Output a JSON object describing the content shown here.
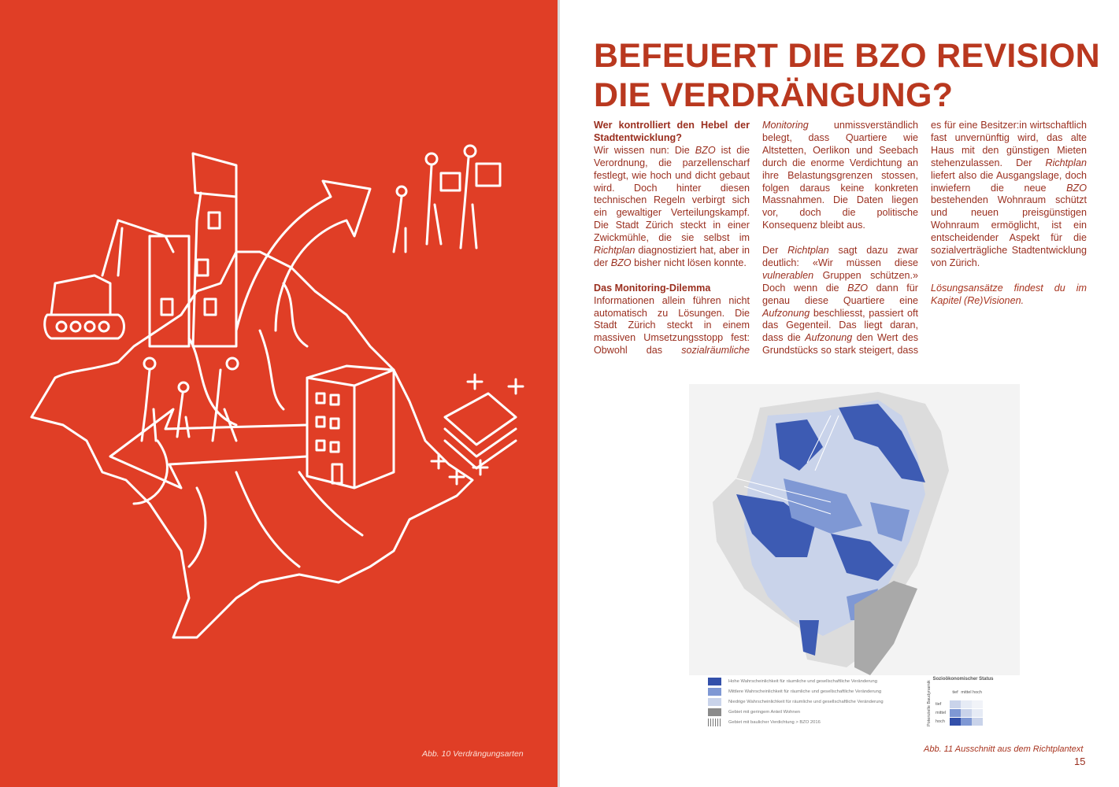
{
  "left_page": {
    "caption": "Abb. 10 Verdrängungsarten"
  },
  "right_page": {
    "title": [
      "BEFEUERT DIE BZO REVISION",
      "DIE VERDRÄNGUNG?"
    ],
    "blocks": [
      {
        "heading": "Wer kontrolliert den Hebel der Stadtentwicklung?"
      },
      {
        "runs": [
          {
            "text": "Wir wissen nun: Die "
          },
          {
            "text": "BZO",
            "italic": true
          },
          {
            "text": " ist die Verordnung, die parzellenscharf festlegt, wie hoch und dicht gebaut wird. Doch hinter diesen technischen Regeln verbirgt sich ein gewaltiger Verteilungskampf. Die Stadt Zürich steckt in einer Zwickmühle, die sie selbst im "
          },
          {
            "text": "Richtplan",
            "italic": true
          },
          {
            "text": " diagnostiziert hat, aber in der "
          },
          {
            "text": "BZO",
            "italic": true
          },
          {
            "text": " bisher nicht lösen konnte."
          }
        ]
      },
      {
        "heading": "Das Monitoring-Dilemma"
      },
      {
        "runs": [
          {
            "text": "Informationen allein führen nicht automatisch zu Lösungen. Die Stadt Zürich steckt in einem massiven Umsetzungsstopp fest: Obwohl das "
          },
          {
            "text": "sozialräumliche Monitoring",
            "italic": true
          },
          {
            "text": " unmissverständlich belegt, dass Quartiere wie Altstetten, Oerlikon und Seebach durch die enorme Verdichtung an ihre Belastungsgrenzen stossen, folgen daraus keine konkreten Massnahmen. Die Daten liegen vor, doch die politische Konsequenz bleibt aus."
          }
        ]
      },
      {
        "runs": [
          {
            "text": "Der "
          },
          {
            "text": "Richtplan",
            "italic": true
          },
          {
            "text": " sagt dazu zwar deutlich: «Wir müssen diese "
          },
          {
            "text": "vulnerablen",
            "italic": true
          },
          {
            "text": " Gruppen schützen.» Doch wenn die "
          },
          {
            "text": "BZO",
            "italic": true
          },
          {
            "text": " dann für genau diese Quartiere eine "
          },
          {
            "text": "Aufzonung",
            "italic": true
          },
          {
            "text": " beschliesst, passiert oft das Gegenteil. Das liegt daran, dass die "
          },
          {
            "text": "Aufzonung",
            "italic": true
          },
          {
            "text": " den Wert des Grundstücks so stark steigert, dass es für eine Besitzer:in wirtschaftlich fast unvernünftig wird, das alte Haus mit den günstigen Mieten stehenzulassen. Der "
          },
          {
            "text": "Richtplan",
            "italic": true
          },
          {
            "text": " liefert also die Ausgangslage, doch inwiefern die neue "
          },
          {
            "text": "BZO",
            "italic": true
          },
          {
            "text": " bestehenden Wohnraum schützt und neuen preisgünstigen Wohnraum ermöglicht, ist ein entscheidender Aspekt für die sozialverträgliche Stadtentwicklung von Zürich."
          }
        ]
      },
      {
        "runs": [
          {
            "text": "Lösungsansätze findest du im Kapitel (Re)Visionen.",
            "italic": true
          }
        ],
        "note": true
      }
    ],
    "legend": [
      "Hohe Wahrscheinlichkeit für räumliche und gesellschaftliche Veränderung",
      "Mittlere Wahrscheinlichkeit für räumliche und gesellschaftliche Veränderung",
      "Niedrige Wahrscheinlichkeit für räumliche und gesellschaftliche Veränderung",
      "Gebiet mit geringem Anteil Wohnen",
      "Gebiet mit baulicher Verdichtung > BZO 2016"
    ],
    "matrix": {
      "title": "Sozioökonomischer Status",
      "columns": [
        "tief",
        "mittel",
        "hoch"
      ],
      "rows": [
        "tief",
        "mittel",
        "hoch"
      ],
      "side_label": "Potenzielle Baudynamik"
    },
    "caption": "Abb. 11 Ausschnitt aus dem Richtplantext",
    "page_number": "15"
  }
}
